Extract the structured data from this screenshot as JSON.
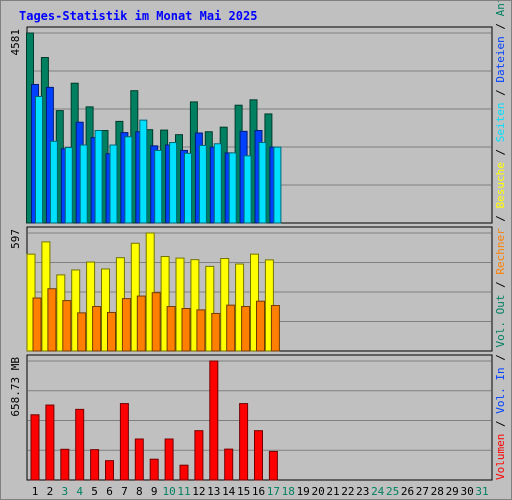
{
  "title": "Tages-Statistik im Monat Mai 2025",
  "chart_data": [
    {
      "type": "bar",
      "panel": "requests",
      "y_max_label": "4581",
      "ylim": [
        0,
        4581
      ],
      "categories": [
        "1",
        "2",
        "3",
        "4",
        "5",
        "6",
        "7",
        "8",
        "9",
        "10",
        "11",
        "12",
        "13",
        "14",
        "15",
        "16",
        "17",
        "18",
        "19",
        "20",
        "21",
        "22",
        "23",
        "24",
        "25",
        "26",
        "27",
        "28",
        "29",
        "30",
        "31"
      ],
      "series": [
        {
          "name": "Anfragen",
          "color": "#008060",
          "values": [
            4581,
            3990,
            2710,
            3370,
            2800,
            2230,
            2450,
            3190,
            2250,
            2240,
            2130,
            2920,
            2200,
            2310,
            2840,
            2970,
            2630,
            null,
            null,
            null,
            null,
            null,
            null,
            null,
            null,
            null,
            null,
            null,
            null,
            null,
            null
          ]
        },
        {
          "name": "Dateien",
          "color": "#0040ff",
          "values": [
            3340,
            3270,
            1790,
            2430,
            2060,
            1670,
            2180,
            2200,
            1860,
            1880,
            1750,
            2170,
            1830,
            1690,
            2210,
            2230,
            1830,
            null,
            null,
            null,
            null,
            null,
            null,
            null,
            null,
            null,
            null,
            null,
            null,
            null,
            null
          ]
        },
        {
          "name": "Seiten",
          "color": "#00e0ff",
          "values": [
            3050,
            1970,
            1820,
            1880,
            2230,
            1880,
            2080,
            2480,
            1750,
            1940,
            1680,
            1870,
            1910,
            1690,
            1620,
            1940,
            1830,
            null,
            null,
            null,
            null,
            null,
            null,
            null,
            null,
            null,
            null,
            null,
            null,
            null,
            null
          ]
        }
      ],
      "legend": "right-vertical"
    },
    {
      "type": "bar",
      "panel": "visits",
      "y_max_label": "597",
      "ylim": [
        0,
        597
      ],
      "categories": [
        "1",
        "2",
        "3",
        "4",
        "5",
        "6",
        "7",
        "8",
        "9",
        "10",
        "11",
        "12",
        "13",
        "14",
        "15",
        "16",
        "17",
        "18",
        "19",
        "20",
        "21",
        "22",
        "23",
        "24",
        "25",
        "26",
        "27",
        "28",
        "29",
        "30",
        "31"
      ],
      "series": [
        {
          "name": "Besuche",
          "color": "#ffff00",
          "values": [
            490,
            552,
            385,
            410,
            450,
            415,
            472,
            545,
            597,
            478,
            470,
            462,
            428,
            468,
            440,
            490,
            461,
            null,
            null,
            null,
            null,
            null,
            null,
            null,
            null,
            null,
            null,
            null,
            null,
            null,
            null
          ]
        },
        {
          "name": "Rechner",
          "color": "#ff8000",
          "values": [
            268,
            315,
            255,
            193,
            225,
            195,
            265,
            278,
            295,
            225,
            215,
            208,
            190,
            232,
            225,
            252,
            230,
            null,
            null,
            null,
            null,
            null,
            null,
            null,
            null,
            null,
            null,
            null,
            null,
            null,
            null
          ]
        }
      ],
      "legend": "right-vertical"
    },
    {
      "type": "bar",
      "panel": "volume",
      "y_max_label": "658.73 MB",
      "ylim": [
        0,
        658.73
      ],
      "categories": [
        "1",
        "2",
        "3",
        "4",
        "5",
        "6",
        "7",
        "8",
        "9",
        "10",
        "11",
        "12",
        "13",
        "14",
        "15",
        "16",
        "17",
        "18",
        "19",
        "20",
        "21",
        "22",
        "23",
        "24",
        "25",
        "26",
        "27",
        "28",
        "29",
        "30",
        "31"
      ],
      "series": [
        {
          "name": "Volumen",
          "color": "#ff0000",
          "values": [
            361,
            415,
            170,
            391,
            168,
            107,
            423,
            227,
            115,
            227,
            82,
            273,
            658.73,
            171,
            423,
            273,
            158,
            null,
            null,
            null,
            null,
            null,
            null,
            null,
            null,
            null,
            null,
            null,
            null,
            null,
            null
          ]
        }
      ],
      "legend_labels": [
        "Vol. Out",
        "Vol. In",
        "Volumen"
      ],
      "legend_colors": [
        "#008060",
        "#0040ff",
        "#ff0000"
      ],
      "legend": "right-vertical"
    }
  ],
  "x_labels": [
    "1",
    "2",
    "3",
    "4",
    "5",
    "6",
    "7",
    "8",
    "9",
    "10",
    "11",
    "12",
    "13",
    "14",
    "15",
    "16",
    "17",
    "18",
    "19",
    "20",
    "21",
    "22",
    "23",
    "24",
    "25",
    "26",
    "27",
    "28",
    "29",
    "30",
    "31"
  ],
  "weekend_days": [
    3,
    4,
    10,
    11,
    17,
    18,
    24,
    25,
    31
  ],
  "colors": {
    "weekday": "#000000",
    "weekend": "#008060",
    "panel": "#c0c0c0",
    "grid": "#808080"
  },
  "legend_right": [
    {
      "text": "Anfragen",
      "color": "#008060"
    },
    {
      "text": " / ",
      "color": "#000000"
    },
    {
      "text": "Dateien",
      "color": "#0040ff"
    },
    {
      "text": " / ",
      "color": "#000000"
    },
    {
      "text": "Seiten",
      "color": "#00e0ff"
    },
    {
      "text": " / ",
      "color": "#000000"
    },
    {
      "text": "Besuche",
      "color": "#ffff00"
    },
    {
      "text": " / ",
      "color": "#000000"
    },
    {
      "text": "Rechner",
      "color": "#ff8000"
    },
    {
      "text": " / ",
      "color": "#000000"
    },
    {
      "text": "Vol. Out",
      "color": "#008060"
    },
    {
      "text": " / ",
      "color": "#000000"
    },
    {
      "text": "Vol. In",
      "color": "#0040ff"
    },
    {
      "text": " / ",
      "color": "#000000"
    },
    {
      "text": "Volumen",
      "color": "#ff0000"
    }
  ]
}
